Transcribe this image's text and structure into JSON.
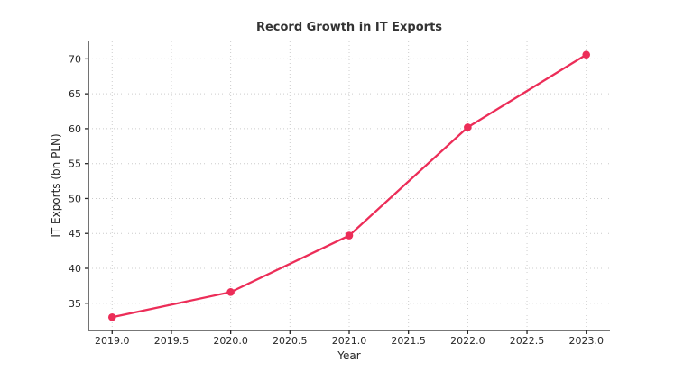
{
  "page": {
    "background": "#ffffff"
  },
  "chart_data": {
    "type": "line",
    "title": "Record Growth in IT Exports",
    "xlabel": "Year",
    "ylabel": "IT Exports (bn PLN)",
    "x": [
      2019,
      2020,
      2021,
      2022,
      2023
    ],
    "values": [
      33.0,
      36.6,
      44.7,
      60.2,
      70.6
    ],
    "xlim": [
      2018.8,
      2023.2
    ],
    "ylim": [
      31.1,
      72.5
    ],
    "xticks": [
      2019.0,
      2019.5,
      2020.0,
      2020.5,
      2021.0,
      2021.5,
      2022.0,
      2022.5,
      2023.0
    ],
    "xtick_labels": [
      "2019.0",
      "2019.5",
      "2020.0",
      "2020.5",
      "2021.0",
      "2021.5",
      "2022.0",
      "2022.5",
      "2023.0"
    ],
    "yticks": [
      35,
      40,
      45,
      50,
      55,
      60,
      65,
      70
    ],
    "grid": true,
    "grid_style": "dotted",
    "grid_color": "#cccccc",
    "line_color": "#EC2D58",
    "marker": "circle",
    "line_width": 2.3,
    "marker_radius": 4.3,
    "text_color": "#262626",
    "legend_position": "none"
  }
}
